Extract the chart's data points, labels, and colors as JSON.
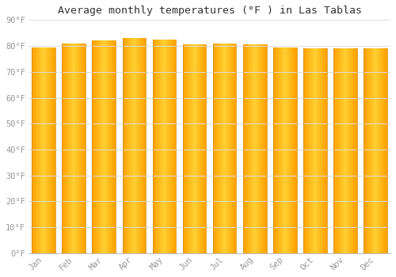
{
  "title": "Average monthly temperatures (°F ) in Las Tablas",
  "months": [
    "Jan",
    "Feb",
    "Mar",
    "Apr",
    "May",
    "Jun",
    "Jul",
    "Aug",
    "Sep",
    "Oct",
    "Nov",
    "Dec"
  ],
  "values": [
    79.5,
    81.0,
    82.0,
    83.0,
    82.5,
    80.5,
    81.0,
    80.5,
    79.5,
    79.0,
    79.0,
    79.0
  ],
  "bar_color_main": "#FFB300",
  "bar_color_light": "#FFD966",
  "bar_color_edge": "#E69500",
  "ylim": [
    0,
    90
  ],
  "ytick_step": 10,
  "background_color": "#FFFFFF",
  "grid_color": "#DDDDDD",
  "title_fontsize": 9.5,
  "tick_fontsize": 7.5,
  "tick_color": "#999999"
}
